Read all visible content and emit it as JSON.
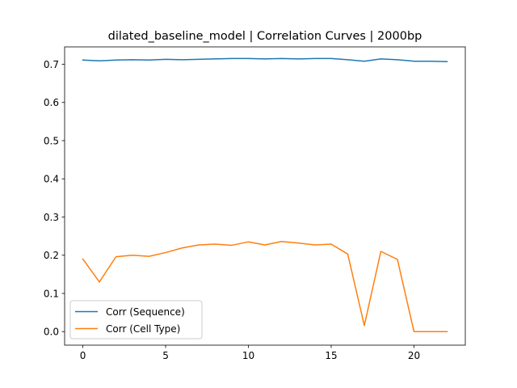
{
  "chart_data": {
    "type": "line",
    "title": "dilated_baseline_model | Correlation Curves | 2000bp",
    "xlabel": "",
    "ylabel": "",
    "xlim": [
      -1.1,
      23.1
    ],
    "ylim": [
      -0.0355,
      0.7455
    ],
    "xticks": [
      0,
      5,
      10,
      15,
      20
    ],
    "yticks": [
      0.0,
      0.1,
      0.2,
      0.3,
      0.4,
      0.5,
      0.6,
      0.7
    ],
    "ytick_labels": [
      "0.0",
      "0.1",
      "0.2",
      "0.3",
      "0.4",
      "0.5",
      "0.6",
      "0.7"
    ],
    "grid": false,
    "legend_position": "lower-left",
    "x": [
      0,
      1,
      2,
      3,
      4,
      5,
      6,
      7,
      8,
      9,
      10,
      11,
      12,
      13,
      14,
      15,
      16,
      17,
      18,
      19,
      20,
      21,
      22
    ],
    "series": [
      {
        "name": "Corr (Sequence)",
        "color": "#1f77b4",
        "values": [
          0.711,
          0.709,
          0.711,
          0.712,
          0.711,
          0.713,
          0.712,
          0.713,
          0.714,
          0.715,
          0.715,
          0.714,
          0.715,
          0.714,
          0.715,
          0.715,
          0.712,
          0.708,
          0.714,
          0.712,
          0.708,
          0.708,
          0.707
        ]
      },
      {
        "name": "Corr (Cell Type)",
        "color": "#ff7f0e",
        "values": [
          0.19,
          0.13,
          0.196,
          0.2,
          0.197,
          0.207,
          0.219,
          0.227,
          0.229,
          0.226,
          0.235,
          0.227,
          0.236,
          0.232,
          0.227,
          0.229,
          0.203,
          0.016,
          0.21,
          0.189,
          0.0,
          0.0,
          0.0
        ]
      }
    ]
  }
}
